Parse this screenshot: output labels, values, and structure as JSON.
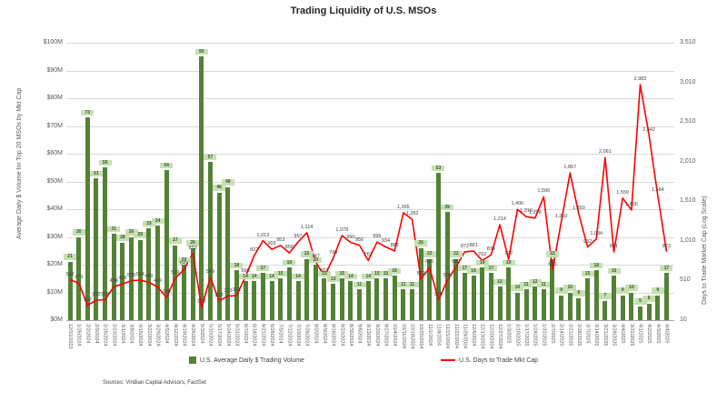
{
  "title": "Trading Liquidity of U.S. MSOs",
  "source_note": "Sources: Viridian Capital Advisors, FactSet",
  "colors": {
    "bar": "#538135",
    "bar_label_bg": "#c6e0b4",
    "bar_label_text": "#375623",
    "line": "#ff0000",
    "grid": "#d9d9d9",
    "axis_text": "#595959"
  },
  "left_axis": {
    "title": "Average Daily $ Volume for Top 20 MSOs by Mkt Cap",
    "ticks": [
      "$0M",
      "$10M",
      "$20M",
      "$30M",
      "$40M",
      "$50M",
      "$60M",
      "$70M",
      "$80M",
      "$90M",
      "$100M"
    ],
    "min": 0,
    "max": 100
  },
  "right_axis": {
    "title": "Days to Trade Market Cap (Log Scale)",
    "ticks": [
      "10",
      "510",
      "1,010",
      "1,510",
      "2,010",
      "2,510",
      "3,010",
      "3,510"
    ],
    "min": 10,
    "max": 3510
  },
  "legend": [
    {
      "label": "U.S. Average Daily $ Trading Volume",
      "type": "bar",
      "color": "#538135"
    },
    {
      "label": "U.S. Days to Trade Mkt Cap",
      "type": "line",
      "color": "#ff0000"
    }
  ],
  "chart_data": {
    "type": "combo-bar-line",
    "grid": "horizontal",
    "legend_position": "bottom",
    "categories": [
      "12/31/2023",
      "1/26/2024",
      "2/2/2024",
      "2/9/2024",
      "2/16/2024",
      "2/23/2024",
      "3/1/2024",
      "3/8/2024",
      "3/15/2024",
      "3/22/2024",
      "3/29/2024",
      "4/5/2024",
      "4/12/2024",
      "4/19/2024",
      "4/26/2024",
      "5/3/2024",
      "5/10/2024",
      "5/17/2024",
      "5/24/2024",
      "5/31/2024",
      "6/7/2024",
      "6/14/2024",
      "6/21/2024",
      "6/28/2024",
      "7/5/2024",
      "7/12/2024",
      "7/19/2024",
      "7/26/2024",
      "8/2/2024",
      "8/9/2024",
      "8/16/2024",
      "8/23/2024",
      "8/30/2024",
      "9/6/2024",
      "9/13/2024",
      "9/20/2024",
      "9/27/2024",
      "10/4/2024",
      "10/11/2024",
      "10/18/2024",
      "10/25/2024",
      "11/1/2024",
      "11/8/2024",
      "11/15/2024",
      "11/22/2024",
      "11/29/2024",
      "12/6/2024",
      "12/13/2024",
      "12/20/2024",
      "12/27/2024",
      "1/3/2025",
      "1/10/2025",
      "1/17/2025",
      "1/24/2025",
      "1/31/2025",
      "2/7/2025",
      "2/14/2025",
      "2/21/2025",
      "2/28/2025",
      "3/7/2025",
      "3/14/2025",
      "3/21/2025",
      "3/28/2025",
      "4/4/2025",
      "3/31/2025",
      "4/1/2025",
      "4/2/2025",
      "4/3/2025",
      "4/4/2025"
    ],
    "series": [
      {
        "name": "U.S. Average Daily $ Trading Volume",
        "type": "bar",
        "axis": "left",
        "unit": "$M",
        "values": [
          21,
          30,
          73,
          51,
          55,
          31,
          28,
          30,
          29,
          33,
          34,
          54,
          27,
          20,
          26,
          95,
          57,
          46,
          48,
          18,
          14,
          14,
          17,
          14,
          15,
          19,
          14,
          22,
          20,
          15,
          13,
          15,
          14,
          11,
          14,
          15,
          15,
          16,
          11,
          11,
          26,
          22,
          53,
          39,
          22,
          17,
          16,
          19,
          17,
          12,
          19,
          10,
          11,
          12,
          11,
          22,
          9,
          10,
          8,
          15,
          18,
          7,
          16,
          9,
          10,
          5,
          6,
          9,
          17
        ]
      },
      {
        "name": "U.S. Days to Trade Mkt Cap",
        "type": "line",
        "axis": "right",
        "unit": "days",
        "values": [
          518,
          479,
          197,
          262,
          268,
          434,
          466,
          508,
          514,
          489,
          429,
          296,
          539,
          647,
          853,
          172,
          549,
          253,
          313,
          321,
          560,
          822,
          1013,
          903,
          953,
          858,
          997,
          1114,
          747,
          563,
          790,
          1078,
          990,
          956,
          763,
          995,
          934,
          882,
          1365,
          1282,
          529,
          671,
          265,
          508,
          680,
          872,
          881,
          762,
          834,
          1214,
          777,
          1406,
          1316,
          1298,
          1566,
          645,
          1250,
          1867,
          1350,
          932,
          1034,
          2061,
          871,
          1550,
          1400,
          2982,
          2342,
          1584,
          873
        ]
      }
    ],
    "ylim_left": [
      0,
      100
    ],
    "ylim_right": [
      10,
      3510
    ]
  }
}
